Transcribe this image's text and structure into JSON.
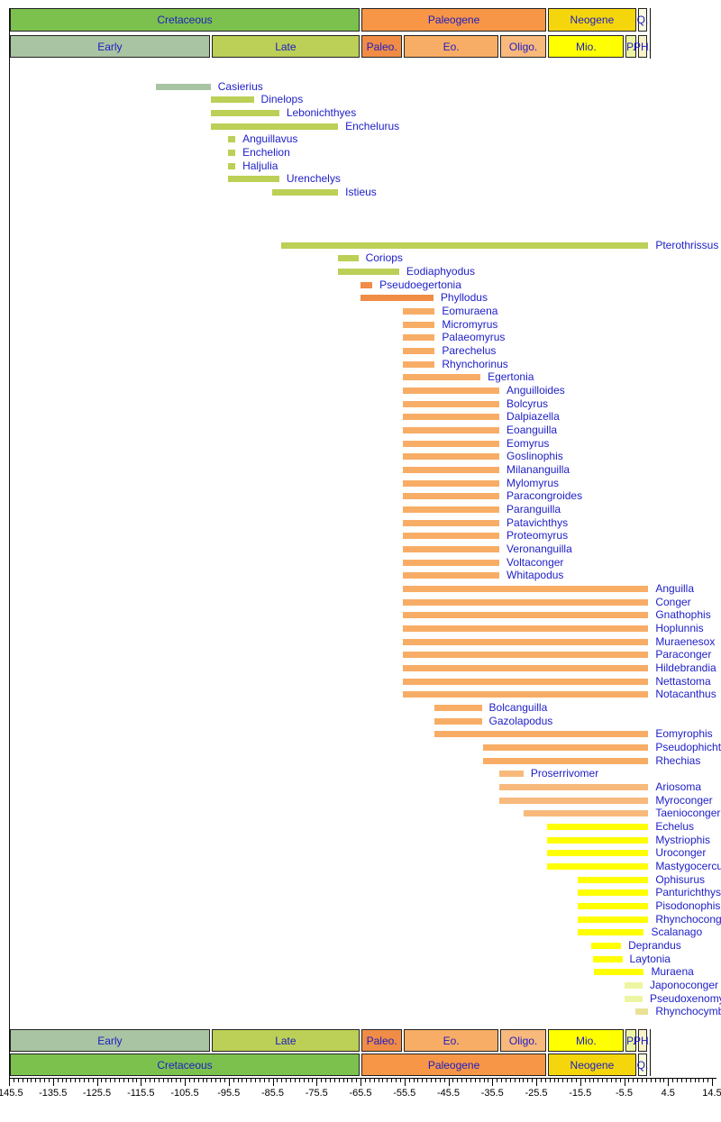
{
  "colors": {
    "cretaceous_period": "#7cc14e",
    "paleogene_period": "#f79646",
    "neogene_period": "#f5d60c",
    "quaternary_period": "#fbfbe0",
    "early_cret": "#a8c4a2",
    "late_cret": "#bccf56",
    "paleocene": "#f08c46",
    "eocene": "#f8ad66",
    "oligocene": "#f8b97c",
    "miocene": "#ffff00",
    "pliocene": "#eef5a2",
    "pleistocene_holocene": "#f8f2cc",
    "quaternary_bar": "#e9e296",
    "label_blue": "#2020c8",
    "axis_black": "#000000"
  },
  "chart_data": {
    "type": "bar",
    "orientation": "horizontal time-range bars (taxon stratigraphic ranges)",
    "title": "",
    "xlabel": "",
    "ylabel": "",
    "x_axis": {
      "min": -145.5,
      "max": 14.5,
      "major_step": 10,
      "minor_step": 1,
      "major_labels": [
        "-145.5",
        "-135.5",
        "-125.5",
        "-115.5",
        "-105.5",
        "-95.5",
        "-85.5",
        "-75.5",
        "-65.5",
        "-55.5",
        "-45.5",
        "-35.5",
        "-25.5",
        "-15.5",
        "-5.5",
        "4.5",
        "14.5"
      ]
    },
    "timescale": {
      "periods": [
        {
          "label": "Cretaceous",
          "t0": -145.5,
          "t1": -65.5,
          "color": "cretaceous_period"
        },
        {
          "label": "Paleogene",
          "t0": -65.5,
          "t1": -23.0,
          "color": "paleogene_period"
        },
        {
          "label": "Neogene",
          "t0": -23.0,
          "t1": -2.6,
          "color": "neogene_period"
        },
        {
          "label": "Q.",
          "t0": -2.6,
          "t1": 0,
          "color": "quaternary_period"
        }
      ],
      "epochs": [
        {
          "label": "Early",
          "t0": -145.5,
          "t1": -99.6,
          "color": "early_cret"
        },
        {
          "label": "Late",
          "t0": -99.6,
          "t1": -65.5,
          "color": "late_cret"
        },
        {
          "label": "Paleo.",
          "t0": -65.5,
          "t1": -55.8,
          "color": "paleocene"
        },
        {
          "label": "Eo.",
          "t0": -55.8,
          "t1": -33.9,
          "color": "eocene"
        },
        {
          "label": "Oligo.",
          "t0": -33.9,
          "t1": -23.0,
          "color": "oligocene"
        },
        {
          "label": "Mio.",
          "t0": -23.0,
          "t1": -5.3,
          "color": "miocene"
        },
        {
          "label": "P.",
          "t0": -5.3,
          "t1": -2.6,
          "color": "pliocene"
        },
        {
          "label": "PH.",
          "t0": -2.6,
          "t1": 0,
          "color": "pleistocene_holocene"
        }
      ]
    },
    "taxa": [
      {
        "name": "Casierius",
        "start": -112.0,
        "end": -99.6,
        "epoch": "early_cret",
        "row": 0
      },
      {
        "name": "Dinelops",
        "start": -99.6,
        "end": -89.8,
        "epoch": "late_cret",
        "row": 1
      },
      {
        "name": "Lebonichthyes",
        "start": -99.6,
        "end": -84.0,
        "epoch": "late_cret",
        "row": 2
      },
      {
        "name": "Enchelurus",
        "start": -99.6,
        "end": -70.6,
        "epoch": "late_cret",
        "row": 3
      },
      {
        "name": "Anguillavus",
        "start": -95.6,
        "end": -94.0,
        "epoch": "late_cret",
        "row": 4
      },
      {
        "name": "Enchelion",
        "start": -95.6,
        "end": -94.0,
        "epoch": "late_cret",
        "row": 5
      },
      {
        "name": "Haljulia",
        "start": -95.6,
        "end": -94.0,
        "epoch": "late_cret",
        "row": 6
      },
      {
        "name": "Urenchelys",
        "start": -95.6,
        "end": -84.0,
        "epoch": "late_cret",
        "row": 7
      },
      {
        "name": "Istieus",
        "start": -85.6,
        "end": -70.6,
        "epoch": "late_cret",
        "row": 8
      },
      {
        "name": "Pterothrissus",
        "start": -83.5,
        "end": 0,
        "epoch": "late_cret",
        "row": 12
      },
      {
        "name": "Coriops",
        "start": -70.6,
        "end": -66.0,
        "epoch": "late_cret",
        "row": 13
      },
      {
        "name": "Eodiaphyodus",
        "start": -70.6,
        "end": -56.7,
        "epoch": "late_cret",
        "row": 14
      },
      {
        "name": "Pseudoegertonia",
        "start": -65.5,
        "end": -62.8,
        "epoch": "paleocene",
        "row": 15
      },
      {
        "name": "Phyllodus",
        "start": -65.5,
        "end": -48.9,
        "epoch": "paleocene",
        "row": 16
      },
      {
        "name": "Eomuraena",
        "start": -55.8,
        "end": -48.6,
        "epoch": "eocene",
        "row": 17
      },
      {
        "name": "Micromyrus",
        "start": -55.8,
        "end": -48.6,
        "epoch": "eocene",
        "row": 18
      },
      {
        "name": "Palaeomyrus",
        "start": -55.8,
        "end": -48.6,
        "epoch": "eocene",
        "row": 19
      },
      {
        "name": "Parechelus",
        "start": -55.8,
        "end": -48.6,
        "epoch": "eocene",
        "row": 20
      },
      {
        "name": "Rhynchorinus",
        "start": -55.8,
        "end": -48.6,
        "epoch": "eocene",
        "row": 21
      },
      {
        "name": "Egertonia",
        "start": -55.8,
        "end": -38.2,
        "epoch": "eocene",
        "row": 22
      },
      {
        "name": "Anguilloides",
        "start": -55.8,
        "end": -33.9,
        "epoch": "eocene",
        "row": 23
      },
      {
        "name": "Bolcyrus",
        "start": -55.8,
        "end": -33.9,
        "epoch": "eocene",
        "row": 24
      },
      {
        "name": "Dalpiazella",
        "start": -55.8,
        "end": -33.9,
        "epoch": "eocene",
        "row": 25
      },
      {
        "name": "Eoanguilla",
        "start": -55.8,
        "end": -33.9,
        "epoch": "eocene",
        "row": 26
      },
      {
        "name": "Eomyrus",
        "start": -55.8,
        "end": -33.9,
        "epoch": "eocene",
        "row": 27
      },
      {
        "name": "Goslinophis",
        "start": -55.8,
        "end": -33.9,
        "epoch": "eocene",
        "row": 28
      },
      {
        "name": "Milananguilla",
        "start": -55.8,
        "end": -33.9,
        "epoch": "eocene",
        "row": 29
      },
      {
        "name": "Mylomyrus",
        "start": -55.8,
        "end": -33.9,
        "epoch": "eocene",
        "row": 30
      },
      {
        "name": "Paracongroides",
        "start": -55.8,
        "end": -33.9,
        "epoch": "eocene",
        "row": 31
      },
      {
        "name": "Paranguilla",
        "start": -55.8,
        "end": -33.9,
        "epoch": "eocene",
        "row": 32
      },
      {
        "name": "Patavichthys",
        "start": -55.8,
        "end": -33.9,
        "epoch": "eocene",
        "row": 33
      },
      {
        "name": "Proteomyrus",
        "start": -55.8,
        "end": -33.9,
        "epoch": "eocene",
        "row": 34
      },
      {
        "name": "Veronanguilla",
        "start": -55.8,
        "end": -33.9,
        "epoch": "eocene",
        "row": 35
      },
      {
        "name": "Voltaconger",
        "start": -55.8,
        "end": -33.9,
        "epoch": "eocene",
        "row": 36
      },
      {
        "name": "Whitapodus",
        "start": -55.8,
        "end": -33.9,
        "epoch": "eocene",
        "row": 37
      },
      {
        "name": "Anguilla",
        "start": -55.8,
        "end": 0,
        "epoch": "eocene",
        "row": 38
      },
      {
        "name": "Conger",
        "start": -55.8,
        "end": 0,
        "epoch": "eocene",
        "row": 39
      },
      {
        "name": "Gnathophis",
        "start": -55.8,
        "end": 0,
        "epoch": "eocene",
        "row": 40
      },
      {
        "name": "Hoplunnis",
        "start": -55.8,
        "end": 0,
        "epoch": "eocene",
        "row": 41
      },
      {
        "name": "Muraenesox",
        "start": -55.8,
        "end": 0,
        "epoch": "eocene",
        "row": 42
      },
      {
        "name": "Paraconger",
        "start": -55.8,
        "end": 0,
        "epoch": "eocene",
        "row": 43
      },
      {
        "name": "Hildebrandia",
        "start": -55.8,
        "end": 0,
        "epoch": "eocene",
        "row": 44
      },
      {
        "name": "Nettastoma",
        "start": -55.8,
        "end": 0,
        "epoch": "eocene",
        "row": 45
      },
      {
        "name": "Notacanthus",
        "start": -55.8,
        "end": 0,
        "epoch": "eocene",
        "row": 46
      },
      {
        "name": "Bolcanguilla",
        "start": -48.6,
        "end": -37.9,
        "epoch": "eocene",
        "row": 47
      },
      {
        "name": "Gazolapodus",
        "start": -48.6,
        "end": -37.9,
        "epoch": "eocene",
        "row": 48
      },
      {
        "name": "Eomyrophis",
        "start": -48.6,
        "end": 0,
        "epoch": "eocene",
        "row": 49
      },
      {
        "name": "Pseudophichthys",
        "start": -37.6,
        "end": 0,
        "epoch": "eocene",
        "row": 50
      },
      {
        "name": "Rhechias",
        "start": -37.6,
        "end": 0,
        "epoch": "eocene",
        "row": 51
      },
      {
        "name": "Proserrivomer",
        "start": -33.9,
        "end": -28.4,
        "epoch": "oligocene",
        "row": 52
      },
      {
        "name": "Ariosoma",
        "start": -33.9,
        "end": 0,
        "epoch": "oligocene",
        "row": 53
      },
      {
        "name": "Myroconger",
        "start": -33.9,
        "end": 0,
        "epoch": "oligocene",
        "row": 54
      },
      {
        "name": "Taenioconger",
        "start": -28.4,
        "end": 0,
        "epoch": "oligocene",
        "row": 55
      },
      {
        "name": "Echelus",
        "start": -23.0,
        "end": 0,
        "epoch": "miocene",
        "row": 56
      },
      {
        "name": "Mystriophis",
        "start": -23.0,
        "end": 0,
        "epoch": "miocene",
        "row": 57
      },
      {
        "name": "Uroconger",
        "start": -23.0,
        "end": 0,
        "epoch": "miocene",
        "row": 58
      },
      {
        "name": "Mastygocercus",
        "start": -23.0,
        "end": 0,
        "epoch": "miocene",
        "row": 59
      },
      {
        "name": "Ophisurus",
        "start": -16.0,
        "end": 0,
        "epoch": "miocene",
        "row": 60
      },
      {
        "name": "Panturichthys",
        "start": -16.0,
        "end": 0,
        "epoch": "miocene",
        "row": 61
      },
      {
        "name": "Pisodonophis",
        "start": -16.0,
        "end": 0,
        "epoch": "miocene",
        "row": 62
      },
      {
        "name": "Rhynchoconger",
        "start": -16.0,
        "end": 0,
        "epoch": "miocene",
        "row": 63
      },
      {
        "name": "Scalanago",
        "start": -16.0,
        "end": -1.0,
        "epoch": "miocene",
        "row": 64
      },
      {
        "name": "Deprandus",
        "start": -13.0,
        "end": -6.2,
        "epoch": "miocene",
        "row": 65
      },
      {
        "name": "Laytonia",
        "start": -12.5,
        "end": -5.9,
        "epoch": "miocene",
        "row": 66
      },
      {
        "name": "Muraena",
        "start": -12.3,
        "end": -1.0,
        "epoch": "miocene",
        "row": 67
      },
      {
        "name": "Japonoconger",
        "start": -5.5,
        "end": -1.3,
        "epoch": "pliocene",
        "row": 68
      },
      {
        "name": "Pseudoxenomystax",
        "start": -5.5,
        "end": -1.3,
        "epoch": "pliocene",
        "row": 69
      },
      {
        "name": "Rhynchocymba",
        "start": -2.9,
        "end": 0,
        "epoch": "quaternary_bar",
        "row": 70
      }
    ]
  }
}
